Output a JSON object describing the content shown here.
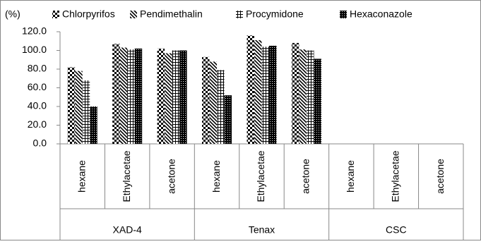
{
  "chart_data": {
    "type": "bar",
    "y_label": "(%)",
    "categories": [
      "hexane",
      "Ethylacetae",
      "acetone",
      "hexane",
      "Ethylacetae",
      "acetone",
      "hexane",
      "Ethylacetae",
      "acetone"
    ],
    "groups": [
      "XAD-4",
      "Tenax",
      "CSC"
    ],
    "series": [
      {
        "name": "Chlorpyrifos",
        "color": "#000000",
        "pattern": "checker",
        "values": [
          82,
          107,
          102,
          93,
          116,
          108,
          null,
          null,
          null
        ]
      },
      {
        "name": "Pendimethalin",
        "color": "#000000",
        "pattern": "diagonal",
        "values": [
          78,
          103,
          97,
          88,
          111,
          101,
          null,
          null,
          null
        ]
      },
      {
        "name": "Procymidone",
        "color": "#000000",
        "pattern": "grid",
        "values": [
          68,
          101,
          100,
          79,
          104,
          100,
          null,
          null,
          null
        ]
      },
      {
        "name": "Hexaconazole",
        "color": "#000000",
        "pattern": "dots",
        "values": [
          40,
          102,
          100,
          52,
          105,
          91,
          null,
          null,
          null
        ]
      }
    ],
    "ylim": [
      0,
      120
    ],
    "yticks": [
      {
        "value": 0,
        "label": "0.0"
      },
      {
        "value": 20,
        "label": "20.0"
      },
      {
        "value": 40,
        "label": "40.0"
      },
      {
        "value": 60,
        "label": "60.0"
      },
      {
        "value": 80,
        "label": "80.0"
      },
      {
        "value": 100,
        "label": "100.0"
      },
      {
        "value": 120,
        "label": "120.0"
      }
    ],
    "legend": "top"
  }
}
